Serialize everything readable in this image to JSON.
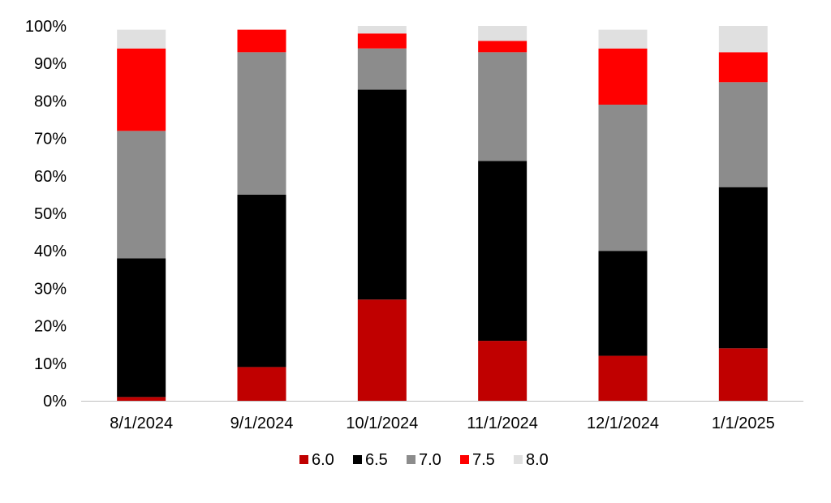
{
  "chart_data": {
    "type": "bar",
    "stacked": true,
    "categories": [
      "8/1/2024",
      "9/1/2024",
      "10/1/2024",
      "11/1/2024",
      "12/1/2024",
      "1/1/2025"
    ],
    "series": [
      {
        "name": "6.0",
        "color": "#c00000",
        "values": [
          1,
          9,
          27,
          16,
          12,
          14
        ]
      },
      {
        "name": "6.5",
        "color": "#000000",
        "values": [
          37,
          46,
          56,
          48,
          28,
          43
        ]
      },
      {
        "name": "7.0",
        "color": "#8c8c8c",
        "values": [
          34,
          38,
          11,
          29,
          39,
          28
        ]
      },
      {
        "name": "7.5",
        "color": "#ff0000",
        "values": [
          22,
          6,
          4,
          3,
          15,
          8
        ]
      },
      {
        "name": "8.0",
        "color": "#e0e0e0",
        "values": [
          5,
          0,
          2,
          4,
          5,
          7
        ]
      }
    ],
    "yticks": [
      "0%",
      "10%",
      "20%",
      "30%",
      "40%",
      "50%",
      "60%",
      "70%",
      "80%",
      "90%",
      "100%"
    ],
    "ylim": [
      0,
      100
    ],
    "grid": false,
    "legend_position": "bottom"
  }
}
